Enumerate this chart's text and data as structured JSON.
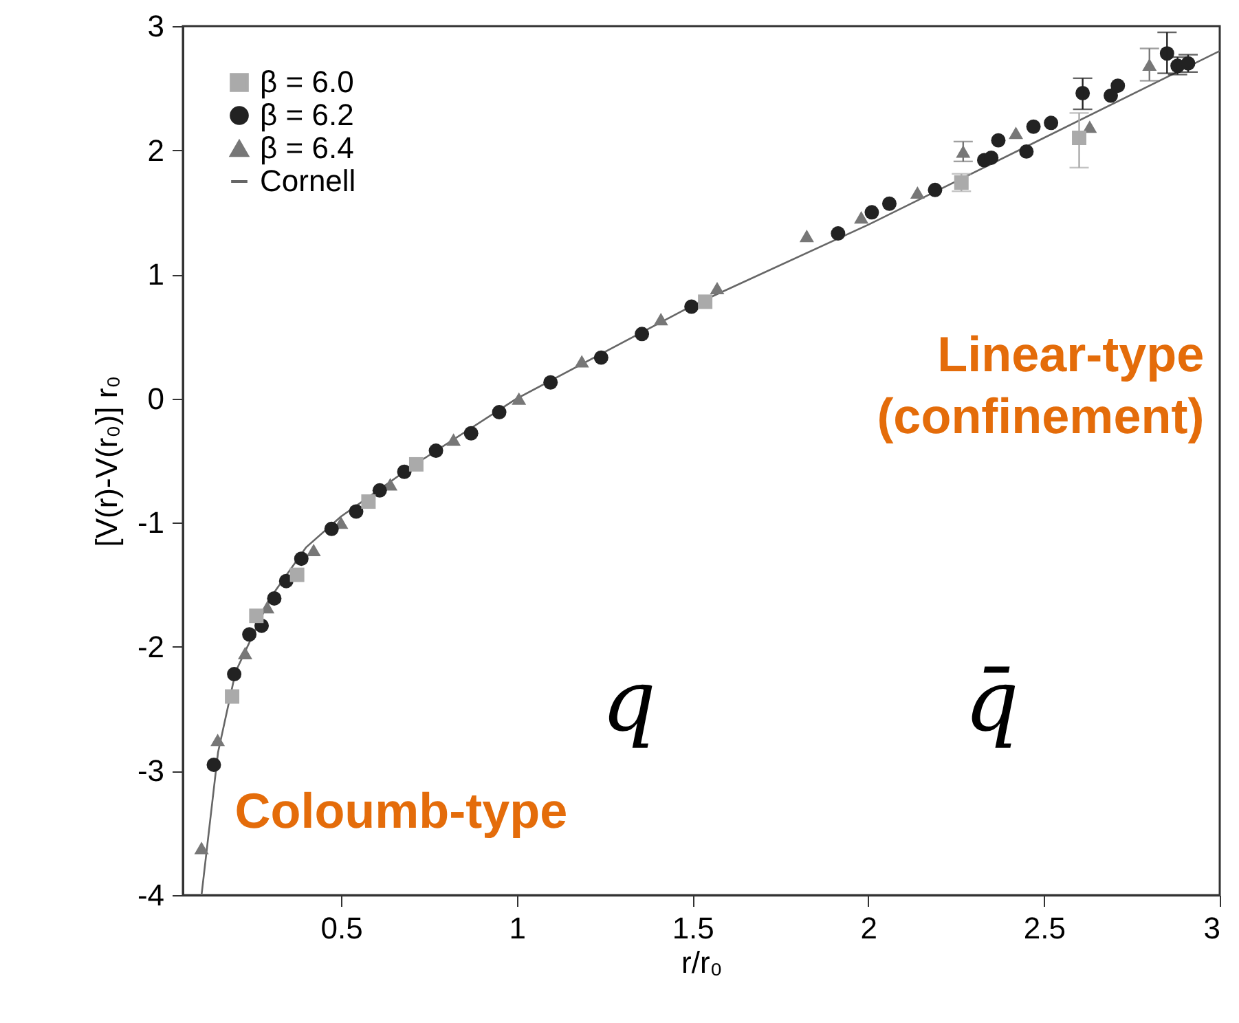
{
  "chart_data": {
    "type": "scatter",
    "xlabel": "r/r₀",
    "ylabel": "[V(r)-V(r₀)] r₀",
    "xlim": [
      0.05,
      3
    ],
    "xticks": [
      0.5,
      1,
      1.5,
      2,
      2.5,
      3
    ],
    "ylim": [
      -4,
      3
    ],
    "yticks": [
      -4,
      -3,
      -2,
      -1,
      0,
      1,
      2,
      3
    ],
    "grid": false,
    "legend": "top left",
    "annotations": [
      "Linear-type\n(confinement)",
      "Coloumb-type",
      "q",
      "q̄"
    ],
    "series": [
      {
        "name": "β = 6.0",
        "color": "#aaaaaa",
        "marker": "square",
        "x": [
          0.19,
          0.259,
          0.375,
          0.578,
          0.714,
          1.536,
          2.265,
          2.6
        ],
        "values": [
          -2.4,
          -1.75,
          -1.42,
          -0.83,
          -0.53,
          0.78,
          1.74,
          2.1
        ],
        "errors": [
          null,
          null,
          null,
          null,
          null,
          null,
          0.07,
          [
            1.86,
            2.3
          ]
        ]
      },
      {
        "name": "β = 6.2",
        "color": "#222222",
        "marker": "circle",
        "x": [
          0.138,
          0.196,
          0.239,
          0.274,
          0.31,
          0.344,
          0.387,
          0.473,
          0.543,
          0.61,
          0.68,
          0.77,
          0.87,
          0.95,
          1.096,
          1.24,
          1.356,
          1.497,
          1.914,
          2.01,
          2.06,
          2.19,
          2.33,
          2.35,
          2.37,
          2.45,
          2.47,
          2.52,
          2.61,
          2.69,
          2.71,
          2.85,
          2.88,
          2.91
        ],
        "values": [
          -2.95,
          -2.22,
          -1.9,
          -1.83,
          -1.61,
          -1.47,
          -1.29,
          -1.05,
          -0.91,
          -0.74,
          -0.59,
          -0.42,
          -0.28,
          -0.11,
          0.13,
          0.33,
          0.52,
          0.74,
          1.33,
          1.5,
          1.57,
          1.68,
          1.92,
          1.94,
          2.08,
          1.99,
          2.19,
          2.22,
          2.46,
          2.44,
          2.52,
          2.78,
          2.68,
          2.7
        ],
        "errors": [
          null,
          null,
          null,
          null,
          null,
          null,
          null,
          null,
          null,
          null,
          null,
          null,
          null,
          null,
          null,
          null,
          null,
          null,
          null,
          null,
          null,
          null,
          null,
          null,
          null,
          null,
          null,
          null,
          [
            2.33,
            2.58
          ],
          null,
          null,
          [
            2.62,
            2.95
          ],
          0.07,
          0.07
        ]
      },
      {
        "name": "β = 6.4",
        "color": "#777777",
        "marker": "triangle",
        "x": [
          0.103,
          0.149,
          0.18,
          0.227,
          0.29,
          0.422,
          0.5,
          0.64,
          0.82,
          1.006,
          1.185,
          1.41,
          1.57,
          1.825,
          1.98,
          2.14,
          2.27,
          2.42,
          2.63,
          2.8
        ],
        "values": [
          -3.62,
          -2.75,
          null,
          -2.05,
          -1.68,
          -1.22,
          -1.0,
          -0.69,
          -0.33,
          0.0,
          0.3,
          0.64,
          0.89,
          1.31,
          1.46,
          1.66,
          1.99,
          2.14,
          2.19,
          2.69
        ],
        "errors": [
          null,
          null,
          null,
          null,
          null,
          null,
          null,
          null,
          null,
          null,
          null,
          null,
          null,
          null,
          null,
          null,
          0.08,
          null,
          null,
          [
            2.56,
            2.82
          ]
        ]
      },
      {
        "name": "Cornell",
        "type": "line",
        "color": "#666666",
        "x": [
          0.103,
          0.15,
          0.2,
          0.3,
          0.4,
          0.5,
          0.7,
          1.0,
          1.5,
          2.0,
          2.5,
          3.0
        ],
        "values": [
          -4.0,
          -2.85,
          -2.2,
          -1.6,
          -1.2,
          -0.95,
          -0.55,
          0.0,
          0.75,
          1.4,
          2.1,
          2.8
        ]
      }
    ]
  }
}
